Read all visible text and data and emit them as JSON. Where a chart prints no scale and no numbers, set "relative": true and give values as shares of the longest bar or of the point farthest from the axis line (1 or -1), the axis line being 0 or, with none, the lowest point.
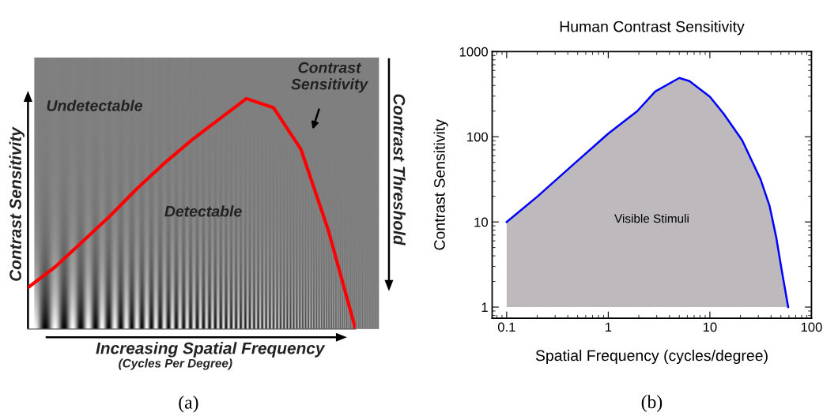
{
  "chart_data": [
    {
      "type": "line",
      "relative": true,
      "tick_labels": false,
      "xlabel": "Increasing Spatial Frequency",
      "ylabel": "Contrast Sensitivity",
      "y2label": "Contrast Threshold",
      "annotations": [
        "Undetectable",
        "Detectable",
        "Contrast\nSensitivity",
        "(Cycles Per Degree)",
        "(a)"
      ],
      "categories": [
        null,
        null,
        null,
        null,
        null,
        null,
        null,
        null,
        null,
        null,
        null,
        null,
        null
      ],
      "series": [
        {
          "color": "#ff0000",
          "values": [
            0.18,
            0.27,
            0.38,
            0.49,
            0.61,
            0.72,
            0.82,
            0.91,
            1,
            0.96,
            0.78,
            0.43,
            0
          ]
        }
      ]
    },
    {
      "type": "area",
      "log": "xy",
      "title": "Human Contrast Sensitivity",
      "xlabel": "Spatial Frequency (cycles/degree)",
      "ylabel": "Contrast Sensitivity",
      "annotations": [
        "Visible Stimuli",
        "(b)"
      ],
      "xlim": [
        0.072,
        100
      ],
      "ylim": [
        0.74,
        1000
      ],
      "xticks": [
        0.1,
        1,
        10,
        100
      ],
      "yticks": [
        1,
        10,
        100,
        1000
      ],
      "x": [
        0.1,
        0.2,
        0.46,
        1,
        1.93,
        2.9,
        5.0,
        6.3,
        10,
        13.7,
        20.8,
        31.6,
        38.7,
        45,
        50.7,
        59
      ],
      "series": [
        {
          "color": "#0000ff",
          "values": [
            10,
            19.8,
            48,
            109,
            200,
            340,
            490,
            450,
            295,
            186,
            91,
            31.5,
            15.4,
            6.6,
            2.8,
            1
          ]
        }
      ]
    }
  ]
}
